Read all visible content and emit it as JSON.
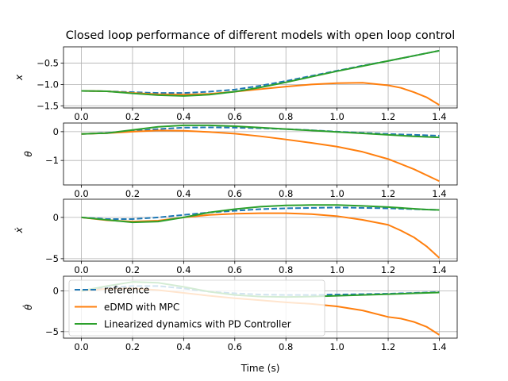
{
  "title": "Closed loop performance of different models with open loop control",
  "xlabel": "Time (s)",
  "legend": {
    "placement": "lower-left of bottom panel",
    "entries": [
      {
        "label": "reference",
        "color": "#1f77b4",
        "style": "dashed"
      },
      {
        "label": "eDMD with MPC",
        "color": "#ff7f0e",
        "style": "solid"
      },
      {
        "label": "Linearized dynamics with PD Controller",
        "color": "#2ca02c",
        "style": "solid"
      }
    ]
  },
  "chart_data": [
    {
      "type": "line",
      "ylabel": "x",
      "ylabel_style": "italic",
      "xlim": [
        -0.07,
        1.47
      ],
      "ylim": [
        -1.55,
        -0.12
      ],
      "xticks": [
        0.0,
        0.2,
        0.4,
        0.6,
        0.8,
        1.0,
        1.2,
        1.4
      ],
      "xticklabels": [
        "0.0",
        "0.2",
        "0.4",
        "0.6",
        "0.8",
        "1.0",
        "1.2",
        "1.4"
      ],
      "yticks": [
        -1.5,
        -1.0,
        -0.5
      ],
      "yticklabels": [
        "−1.5",
        "−1.0",
        "−0.5"
      ],
      "grid": true,
      "x": [
        0.0,
        0.1,
        0.2,
        0.3,
        0.4,
        0.5,
        0.6,
        0.7,
        0.8,
        0.9,
        1.0,
        1.1,
        1.2,
        1.25,
        1.3,
        1.35,
        1.4
      ],
      "series": [
        {
          "name": "reference",
          "values": [
            -1.15,
            -1.16,
            -1.18,
            -1.2,
            -1.2,
            -1.17,
            -1.12,
            -1.03,
            -0.92,
            -0.8,
            -0.68,
            -0.56,
            -0.45,
            -0.39,
            -0.33,
            -0.27,
            -0.21
          ]
        },
        {
          "name": "eDMD with MPC",
          "values": [
            -1.15,
            -1.16,
            -1.2,
            -1.23,
            -1.24,
            -1.22,
            -1.17,
            -1.11,
            -1.05,
            -1.0,
            -0.97,
            -0.96,
            -1.02,
            -1.08,
            -1.18,
            -1.3,
            -1.48
          ]
        },
        {
          "name": "Linearized dynamics with PD Controller",
          "values": [
            -1.15,
            -1.16,
            -1.21,
            -1.25,
            -1.27,
            -1.24,
            -1.17,
            -1.07,
            -0.95,
            -0.82,
            -0.69,
            -0.57,
            -0.45,
            -0.39,
            -0.33,
            -0.27,
            -0.21
          ]
        }
      ]
    },
    {
      "type": "line",
      "ylabel": "θ",
      "ylabel_style": "italic",
      "xlim": [
        -0.07,
        1.47
      ],
      "ylim": [
        -1.85,
        0.3
      ],
      "xticks": [
        0.0,
        0.2,
        0.4,
        0.6,
        0.8,
        1.0,
        1.2,
        1.4
      ],
      "xticklabels": [
        "0.0",
        "0.2",
        "0.4",
        "0.6",
        "0.8",
        "1.0",
        "1.2",
        "1.4"
      ],
      "yticks": [
        -1,
        0
      ],
      "yticklabels": [
        "−1",
        "0"
      ],
      "grid": true,
      "x": [
        0.0,
        0.1,
        0.2,
        0.3,
        0.4,
        0.5,
        0.6,
        0.7,
        0.8,
        0.9,
        1.0,
        1.1,
        1.2,
        1.3,
        1.4
      ],
      "series": [
        {
          "name": "reference",
          "values": [
            -0.08,
            -0.04,
            0.02,
            0.09,
            0.14,
            0.15,
            0.14,
            0.12,
            0.09,
            0.05,
            0.0,
            -0.04,
            -0.08,
            -0.11,
            -0.14
          ]
        },
        {
          "name": "eDMD with MPC",
          "values": [
            -0.08,
            -0.05,
            0.0,
            0.04,
            0.03,
            -0.01,
            -0.07,
            -0.16,
            -0.27,
            -0.39,
            -0.52,
            -0.7,
            -0.95,
            -1.3,
            -1.72
          ]
        },
        {
          "name": "Linearized dynamics with PD Controller",
          "values": [
            -0.08,
            -0.05,
            0.06,
            0.17,
            0.22,
            0.22,
            0.19,
            0.14,
            0.09,
            0.04,
            -0.01,
            -0.06,
            -0.11,
            -0.16,
            -0.2
          ]
        }
      ]
    },
    {
      "type": "line",
      "ylabel": "ẋ",
      "ylabel_style": "italic",
      "xlim": [
        -0.07,
        1.47
      ],
      "ylim": [
        -5.3,
        2.2
      ],
      "xticks": [
        0.0,
        0.2,
        0.4,
        0.6,
        0.8,
        1.0,
        1.2,
        1.4
      ],
      "xticklabels": [
        "0.0",
        "0.2",
        "0.4",
        "0.6",
        "0.8",
        "1.0",
        "1.2",
        "1.4"
      ],
      "yticks": [
        -5,
        0
      ],
      "yticklabels": [
        "−5",
        "0"
      ],
      "grid": true,
      "x": [
        0.0,
        0.1,
        0.2,
        0.3,
        0.4,
        0.5,
        0.6,
        0.7,
        0.8,
        0.9,
        1.0,
        1.1,
        1.2,
        1.25,
        1.3,
        1.35,
        1.4
      ],
      "series": [
        {
          "name": "reference",
          "values": [
            0.0,
            -0.2,
            -0.2,
            0.0,
            0.3,
            0.6,
            0.8,
            1.0,
            1.1,
            1.15,
            1.2,
            1.15,
            1.1,
            1.05,
            1.0,
            0.95,
            0.9
          ]
        },
        {
          "name": "eDMD with MPC",
          "values": [
            0.0,
            -0.35,
            -0.5,
            -0.4,
            0.0,
            0.3,
            0.45,
            0.5,
            0.5,
            0.4,
            0.15,
            -0.3,
            -0.9,
            -1.6,
            -2.4,
            -3.5,
            -4.9
          ]
        },
        {
          "name": "Linearized dynamics with PD Controller",
          "values": [
            0.0,
            -0.3,
            -0.6,
            -0.5,
            0.0,
            0.6,
            1.0,
            1.3,
            1.45,
            1.5,
            1.5,
            1.4,
            1.25,
            1.15,
            1.05,
            0.95,
            0.9
          ]
        }
      ]
    },
    {
      "type": "line",
      "ylabel": "θ̇",
      "ylabel_style": "italic",
      "xlim": [
        -0.07,
        1.47
      ],
      "ylim": [
        -5.8,
        1.8
      ],
      "xticks": [
        0.0,
        0.2,
        0.4,
        0.6,
        0.8,
        1.0,
        1.2,
        1.4
      ],
      "xticklabels": [
        "0.0",
        "0.2",
        "0.4",
        "0.6",
        "0.8",
        "1.0",
        "1.2",
        "1.4"
      ],
      "yticks": [
        -5,
        0
      ],
      "yticklabels": [
        "−5",
        "0"
      ],
      "grid": true,
      "x": [
        0.0,
        0.1,
        0.2,
        0.3,
        0.4,
        0.5,
        0.6,
        0.7,
        0.8,
        0.9,
        1.0,
        1.1,
        1.2,
        1.25,
        1.3,
        1.35,
        1.4
      ],
      "series": [
        {
          "name": "reference",
          "values": [
            0.0,
            0.4,
            0.6,
            0.6,
            0.3,
            -0.1,
            -0.3,
            -0.45,
            -0.5,
            -0.5,
            -0.45,
            -0.4,
            -0.35,
            -0.3,
            -0.25,
            -0.2,
            -0.15
          ]
        },
        {
          "name": "eDMD with MPC",
          "values": [
            0.0,
            0.25,
            0.3,
            0.1,
            -0.25,
            -0.6,
            -0.9,
            -1.15,
            -1.4,
            -1.6,
            -1.9,
            -2.4,
            -3.2,
            -3.4,
            -3.8,
            -4.4,
            -5.4
          ]
        },
        {
          "name": "Linearized dynamics with PD Controller",
          "values": [
            0.0,
            0.6,
            1.1,
            1.0,
            0.5,
            -0.1,
            -0.5,
            -0.7,
            -0.75,
            -0.7,
            -0.6,
            -0.5,
            -0.4,
            -0.35,
            -0.3,
            -0.25,
            -0.2
          ]
        }
      ]
    }
  ]
}
